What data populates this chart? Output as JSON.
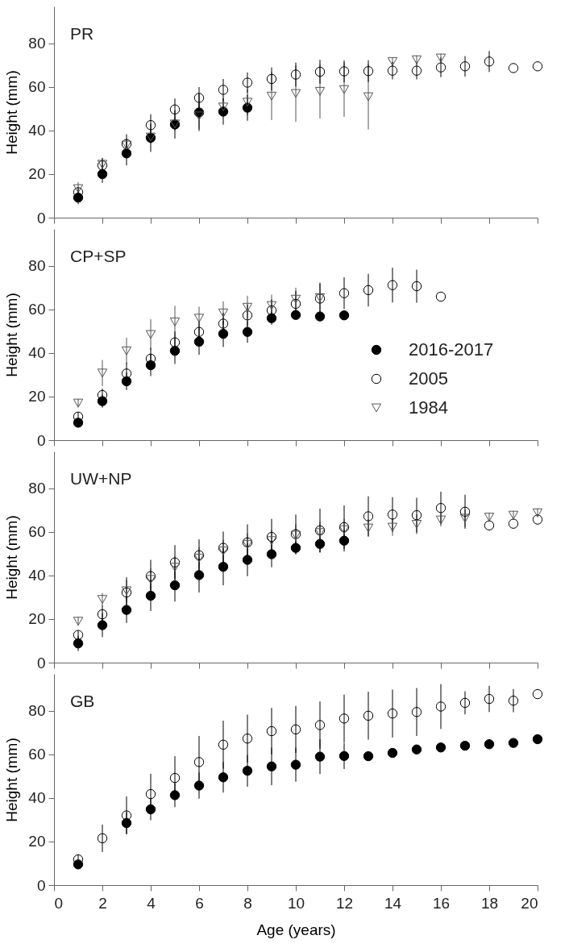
{
  "chart_data": [
    {
      "type": "scatter",
      "title": "PR",
      "ylabel": "Height (mm)",
      "xlim": [
        0,
        20
      ],
      "xticks": [
        {
          "value": 0,
          "label": null
        },
        {
          "value": 2,
          "label": null
        },
        {
          "value": 4,
          "label": null
        },
        {
          "value": 6,
          "label": null
        },
        {
          "value": 8,
          "label": null
        },
        {
          "value": 10,
          "label": null
        },
        {
          "value": 12,
          "label": null
        },
        {
          "value": 14,
          "label": null
        },
        {
          "value": 16,
          "label": null
        },
        {
          "value": 18,
          "label": null
        },
        {
          "value": 20,
          "label": null
        }
      ],
      "ylim": [
        0,
        97
      ],
      "yticks": [
        0,
        20,
        40,
        60,
        80
      ],
      "tick_labels": "y",
      "grid": false,
      "legend": false,
      "series": [
        {
          "color": "#000000",
          "marker": "circle",
          "x": [
            1,
            2,
            3,
            4,
            5,
            6,
            7,
            8
          ],
          "values": [
            9.2,
            20,
            29.5,
            36.7,
            42.8,
            48.3,
            48.7,
            50.5
          ],
          "errors": [
            3,
            4,
            5.5,
            6.5,
            6.5,
            8.5,
            6,
            6
          ]
        },
        {
          "color": "#000000",
          "marker": "circle open",
          "x": [
            1,
            2,
            3,
            4,
            5,
            6,
            7,
            8,
            9,
            10,
            11,
            12,
            13,
            14,
            15,
            16,
            17,
            18,
            19,
            20
          ],
          "values": [
            11.7,
            24,
            33.8,
            42.5,
            49.7,
            55,
            58.7,
            62,
            63.7,
            65.7,
            67,
            67.2,
            67.3,
            67.5,
            67.5,
            69,
            69.5,
            71.7,
            68.7,
            69.5
          ],
          "errors": [
            2,
            3.3,
            4.5,
            5,
            5,
            5,
            5,
            4.7,
            5.3,
            5.5,
            5.5,
            5,
            5,
            4,
            4,
            4.5,
            4.7,
            4.8,
            null,
            null
          ]
        },
        {
          "color": "#555555",
          "marker": "triangle open",
          "x": [
            1,
            2,
            3,
            4,
            5,
            6,
            7,
            8,
            9,
            10,
            11,
            12,
            13,
            14,
            15,
            16
          ],
          "values": [
            13.3,
            24.5,
            33.3,
            37,
            43,
            46.7,
            50.8,
            53,
            55.8,
            57,
            58,
            58.8,
            55.5,
            71.7,
            72.5,
            73.3
          ],
          "errors": [
            3,
            3,
            3,
            3,
            3,
            6,
            4,
            6,
            11,
            13,
            12.5,
            12.5,
            15,
            2,
            2,
            2
          ]
        }
      ]
    },
    {
      "type": "scatter",
      "title": "CP+SP",
      "ylabel": "Height (mm)",
      "xlim": [
        0,
        20
      ],
      "xticks": [
        {
          "value": 0,
          "label": null
        },
        {
          "value": 2,
          "label": null
        },
        {
          "value": 4,
          "label": null
        },
        {
          "value": 6,
          "label": null
        },
        {
          "value": 8,
          "label": null
        },
        {
          "value": 10,
          "label": null
        },
        {
          "value": 12,
          "label": null
        },
        {
          "value": 14,
          "label": null
        },
        {
          "value": 16,
          "label": null
        },
        {
          "value": 18,
          "label": null
        },
        {
          "value": 20,
          "label": null
        }
      ],
      "ylim": [
        0,
        97
      ],
      "yticks": [
        0,
        20,
        40,
        60,
        80
      ],
      "tick_labels": "y",
      "grid": false,
      "legend": "bottom right",
      "series": [
        {
          "name": "2016-2017",
          "color": "#000000",
          "marker": "circle",
          "x": [
            1,
            2,
            3,
            4,
            5,
            6,
            7,
            8,
            9,
            10,
            11,
            12
          ],
          "values": [
            8,
            17.9,
            27,
            34.4,
            41,
            45.2,
            48.8,
            49.7,
            56,
            57.5,
            56.8,
            57.3
          ],
          "errors": [
            null,
            3,
            4,
            5,
            6,
            6,
            6,
            5,
            3,
            2,
            2,
            2
          ]
        },
        {
          "name": "2005",
          "color": "#000000",
          "marker": "circle open",
          "x": [
            1,
            2,
            3,
            4,
            5,
            6,
            7,
            8,
            9,
            10,
            11,
            12,
            13,
            14,
            15,
            16
          ],
          "values": [
            10.8,
            20.7,
            30.6,
            37.4,
            44.9,
            49.7,
            53.5,
            57.3,
            59.6,
            62.6,
            65,
            67.5,
            68.9,
            71.2,
            70.7,
            65.9
          ],
          "errors": [
            2,
            3,
            5,
            5,
            5,
            5,
            5,
            5,
            5,
            6,
            7,
            7.3,
            7.5,
            8,
            7.6,
            null
          ]
        },
        {
          "name": "1984",
          "color": "#555555",
          "marker": "triangle open",
          "x": [
            1,
            2,
            3,
            4,
            5,
            6,
            7,
            8,
            9,
            10,
            11
          ],
          "values": [
            17,
            30.8,
            41,
            48.5,
            54.3,
            56,
            58.4,
            61,
            61.8,
            64.7,
            65.4
          ],
          "errors": [
            2,
            6,
            6,
            7,
            7.4,
            5.3,
            5.3,
            5.3,
            5,
            5.3,
            7
          ]
        }
      ]
    },
    {
      "type": "scatter",
      "title": "UW+NP",
      "ylabel": "Height (mm)",
      "xlim": [
        0,
        20
      ],
      "xticks": [
        {
          "value": 0,
          "label": null
        },
        {
          "value": 2,
          "label": null
        },
        {
          "value": 4,
          "label": null
        },
        {
          "value": 6,
          "label": null
        },
        {
          "value": 8,
          "label": null
        },
        {
          "value": 10,
          "label": null
        },
        {
          "value": 12,
          "label": null
        },
        {
          "value": 14,
          "label": null
        },
        {
          "value": 16,
          "label": null
        },
        {
          "value": 18,
          "label": null
        },
        {
          "value": 20,
          "label": null
        }
      ],
      "ylim": [
        0,
        97
      ],
      "yticks": [
        0,
        20,
        40,
        60,
        80
      ],
      "tick_labels": "y",
      "grid": false,
      "legend": false,
      "series": [
        {
          "color": "#000000",
          "marker": "circle",
          "x": [
            1,
            2,
            3,
            4,
            5,
            6,
            7,
            8,
            9,
            10,
            11,
            12
          ],
          "values": [
            8.8,
            17.2,
            24.2,
            30.7,
            35.5,
            40.2,
            44,
            47.2,
            49.8,
            52.7,
            54.5,
            56
          ],
          "errors": [
            3.5,
            5.5,
            6,
            7,
            7.5,
            8,
            8.5,
            7.5,
            6,
            3,
            4,
            5
          ]
        },
        {
          "color": "#000000",
          "marker": "circle open",
          "x": [
            1,
            2,
            3,
            4,
            5,
            6,
            7,
            8,
            9,
            10,
            11,
            12,
            13,
            14,
            15,
            16,
            17,
            18,
            19,
            20
          ],
          "values": [
            12.7,
            22.2,
            32.2,
            39.7,
            46,
            49.3,
            52.7,
            55.2,
            57.7,
            59,
            60.7,
            62.2,
            67.2,
            68,
            67.7,
            71,
            69.3,
            63,
            63.8,
            65.7
          ],
          "errors": [
            2,
            4,
            7,
            7.5,
            8,
            7.3,
            7.5,
            8.3,
            8.3,
            9,
            10,
            10,
            9.2,
            8,
            8,
            7.5,
            7.8,
            null,
            null,
            null
          ]
        },
        {
          "color": "#555555",
          "marker": "triangle open",
          "x": [
            1,
            2,
            3,
            4,
            5,
            6,
            7,
            8,
            9,
            10,
            11,
            12,
            13,
            14,
            15,
            16,
            17,
            18,
            19,
            20
          ],
          "values": [
            19,
            29,
            33,
            38.2,
            43.8,
            48,
            51.3,
            54.3,
            56,
            58.5,
            59.7,
            61,
            61.8,
            62.2,
            63.5,
            65.5,
            66.3,
            66.8,
            67.7,
            68.8
          ],
          "errors": [
            2,
            3,
            5,
            5,
            5,
            5,
            5,
            5,
            5,
            5,
            5,
            5,
            4,
            4,
            4.5,
            3,
            4,
            2,
            2,
            2
          ]
        }
      ]
    },
    {
      "type": "scatter",
      "title": "GB",
      "xlabel": "Age (years)",
      "ylabel": "Height (mm)",
      "xlim": [
        0,
        20
      ],
      "xticks": [
        0,
        2,
        4,
        6,
        8,
        10,
        12,
        14,
        16,
        18,
        20
      ],
      "ylim": [
        0,
        97
      ],
      "yticks": [
        0,
        20,
        40,
        60,
        80
      ],
      "grid": false,
      "legend": false,
      "series": [
        {
          "color": "#000000",
          "marker": "circle",
          "x": [
            1,
            2,
            3,
            4,
            5,
            6,
            7,
            8,
            9,
            10,
            11,
            12,
            13,
            14,
            15,
            16,
            17,
            18,
            19,
            20
          ],
          "values": [
            9.5,
            null,
            28.5,
            34.8,
            41.3,
            45.7,
            49.5,
            52.5,
            54.5,
            55.3,
            59,
            59.3,
            59.2,
            60.7,
            62.3,
            63.2,
            64,
            64.7,
            65.3,
            67
          ],
          "errors": [
            2,
            null,
            5,
            5,
            5.5,
            6,
            7,
            7.3,
            8.6,
            7.8,
            8,
            6,
            null,
            null,
            null,
            null,
            null,
            null,
            null,
            null
          ]
        },
        {
          "color": "#000000",
          "marker": "circle open",
          "x": [
            1,
            2,
            3,
            4,
            5,
            6,
            7,
            8,
            9,
            10,
            11,
            12,
            13,
            14,
            15,
            16,
            17,
            18,
            19,
            20
          ],
          "values": [
            11.8,
            21.5,
            32,
            41.8,
            49.2,
            56.5,
            64.5,
            67.3,
            70.7,
            71.5,
            73.5,
            76.5,
            77.8,
            78.8,
            79.5,
            82,
            83.7,
            85.5,
            84.7,
            87.7
          ],
          "errors": [
            2,
            6.3,
            8.7,
            9.3,
            10,
            12,
            11,
            11,
            10.7,
            10.8,
            10.8,
            11,
            11,
            11,
            11,
            10.3,
            5.3,
            6,
            5.3,
            null
          ]
        }
      ]
    }
  ]
}
